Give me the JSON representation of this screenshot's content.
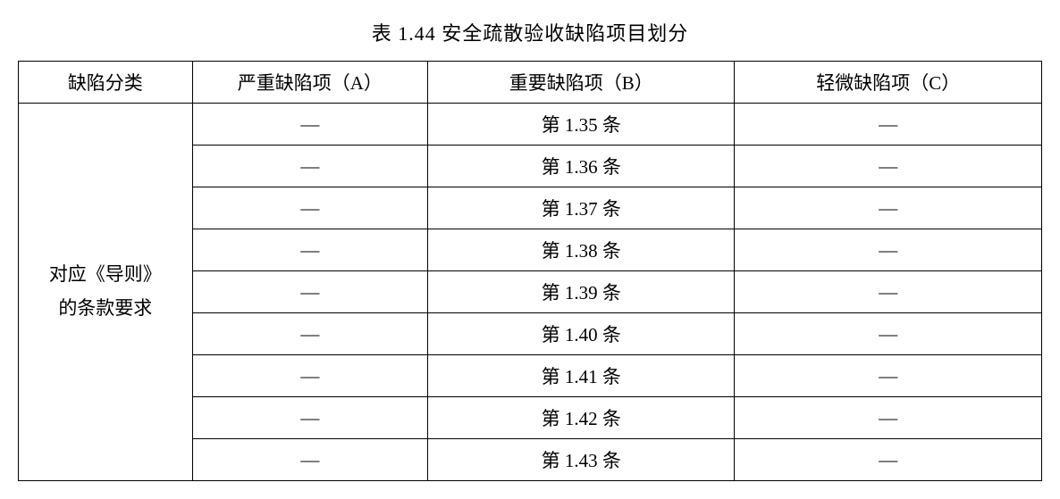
{
  "title": "表 1.44 安全疏散验收缺陷项目划分",
  "table": {
    "headers": {
      "c1": "缺陷分类",
      "c2": "严重缺陷项（A）",
      "c3": "重要缺陷项（B）",
      "c4": "轻微缺陷项（C）"
    },
    "row_label_line1": "对应《导则》",
    "row_label_line2": "的条款要求",
    "dash": "—",
    "rows": [
      {
        "a": "—",
        "b": "第 1.35 条",
        "c": "—"
      },
      {
        "a": "—",
        "b": "第 1.36 条",
        "c": "—"
      },
      {
        "a": "—",
        "b": "第 1.37 条",
        "c": "—"
      },
      {
        "a": "—",
        "b": "第 1.38 条",
        "c": "—"
      },
      {
        "a": "—",
        "b": "第 1.39 条",
        "c": "—"
      },
      {
        "a": "—",
        "b": "第 1.40 条",
        "c": "—"
      },
      {
        "a": "—",
        "b": "第 1.41 条",
        "c": "—"
      },
      {
        "a": "—",
        "b": "第 1.42 条",
        "c": "—"
      },
      {
        "a": "—",
        "b": "第 1.43 条",
        "c": "—"
      }
    ],
    "column_widths_pct": [
      17,
      23,
      30,
      30
    ],
    "border_color": "#000000",
    "background_color": "#ffffff",
    "font_family": "SimSun",
    "font_size_pt": 16,
    "title_font_size_pt": 17
  }
}
